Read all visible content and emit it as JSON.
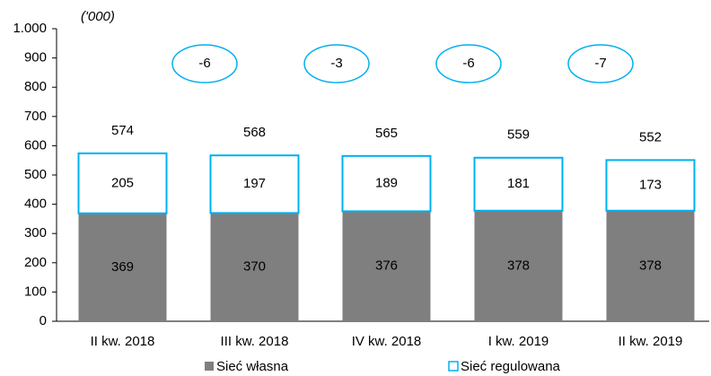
{
  "chart_data": {
    "type": "stacked_bar",
    "unit_label": "('000)",
    "categories": [
      "II kw. 2018",
      "III kw. 2018",
      "IV kw. 2018",
      "I kw. 2019",
      "II kw. 2019"
    ],
    "series": [
      {
        "name": "Sieć własna",
        "color": "#7f7f7f",
        "values": [
          369,
          370,
          376,
          378,
          378
        ]
      },
      {
        "name": "Sieć regulowana",
        "color": "#00b0f0",
        "values": [
          205,
          197,
          189,
          181,
          173
        ]
      }
    ],
    "totals": [
      574,
      568,
      565,
      559,
      552
    ],
    "annotations": [
      -6,
      -3,
      -6,
      -7
    ],
    "ylim": [
      0,
      1000
    ],
    "yticks": [
      0,
      100,
      200,
      300,
      400,
      500,
      600,
      700,
      800,
      900,
      {
        "value": 1000,
        "label": "1.000"
      }
    ],
    "legend": "bottom"
  }
}
